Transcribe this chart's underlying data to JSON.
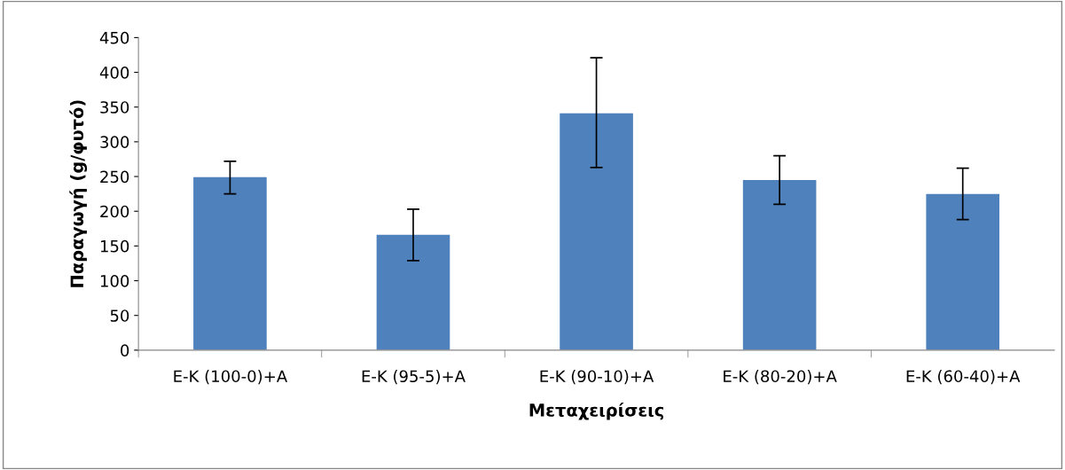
{
  "chart_data": {
    "type": "bar",
    "xlabel": "Μεταχειρίσεις",
    "ylabel": "Παραγωγή (g/φυτό)",
    "categories": [
      "E-K (100-0)+A",
      "E-K (95-5)+A",
      "E-K (90-10)+A",
      "E-K (80-20)+A",
      "E-K (60-40)+A"
    ],
    "values": [
      249,
      166,
      341,
      245,
      225
    ],
    "errors": [
      [
        225,
        272
      ],
      [
        129,
        203
      ],
      [
        263,
        421
      ],
      [
        210,
        280
      ],
      [
        188,
        262
      ]
    ],
    "color": "#4f81bd",
    "ylim": [
      0,
      450
    ],
    "yticks": [
      0,
      50,
      100,
      150,
      200,
      250,
      300,
      350,
      400,
      450
    ],
    "grid": false,
    "legend": false
  }
}
